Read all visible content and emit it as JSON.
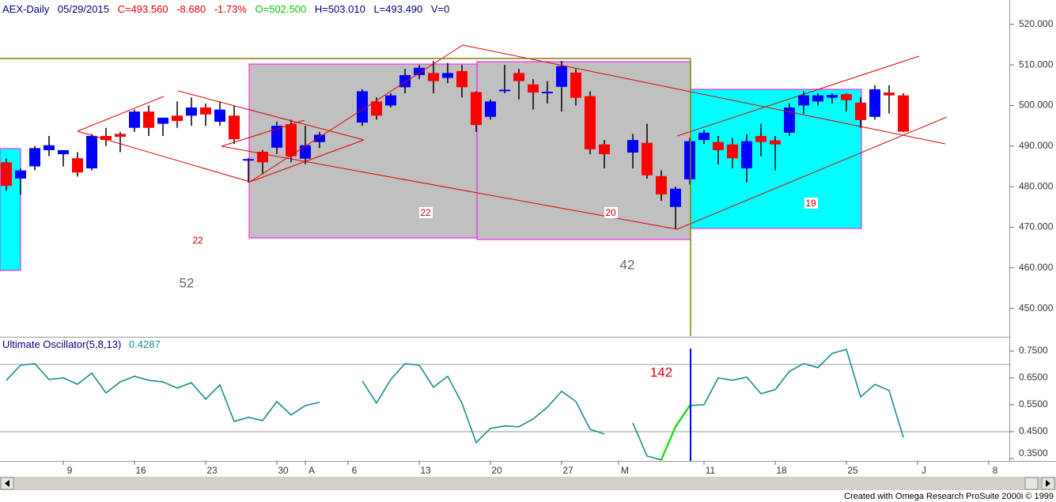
{
  "header": {
    "symbol": "AEX-Daily",
    "date": "05/29/2015",
    "close": "C=493.560",
    "change": "-8.680",
    "change_pct": "-1.73%",
    "open": "O=502.500",
    "high": "H=503.010",
    "low": "L=493.490",
    "volume": "V=0"
  },
  "credit": "Created with Omega Research ProSuite 2000i © 1999",
  "chart_data": [
    {
      "type": "candlestick",
      "categories": [
        null,
        null,
        null,
        null,
        "9",
        null,
        null,
        null,
        null,
        "16",
        null,
        null,
        null,
        null,
        "23",
        null,
        null,
        null,
        null,
        "30",
        null,
        "A",
        null,
        null,
        "6",
        null,
        null,
        null,
        null,
        "13",
        null,
        null,
        null,
        null,
        "20",
        null,
        null,
        null,
        null,
        "27",
        null,
        null,
        null,
        "M",
        null,
        null,
        null,
        null,
        null,
        "11",
        null,
        null,
        null,
        null,
        "18",
        null,
        null,
        null,
        null,
        "25",
        null,
        null,
        null,
        null,
        "J",
        null,
        null,
        null,
        null,
        "8",
        null
      ],
      "open": [
        486,
        482,
        485,
        489,
        488,
        487,
        484.5,
        492.5,
        493,
        494.5,
        498.5,
        495.5,
        497.5,
        497.5,
        499.5,
        496,
        497.5,
        486.5,
        488.6,
        489.6,
        495.4,
        486.9,
        491,
        null,
        null,
        495.8,
        501,
        500,
        504.5,
        507.5,
        508,
        506.8,
        508.5,
        503.3,
        497.2,
        503.7,
        508,
        505.2,
        503.1,
        504.6,
        508.1,
        502.3,
        490.4,
        null,
        488.4,
        490.8,
        482.6,
        475,
        481.8,
        491.5,
        491,
        490.4,
        484.5,
        492.5,
        491.4,
        493.3,
        500,
        501,
        501.9,
        502.8,
        500.7,
        497.2,
        503.2,
        502.5,
        null,
        null,
        null,
        null,
        null,
        null,
        null
      ],
      "high": [
        487,
        484.5,
        490,
        492.5,
        489,
        488.5,
        493,
        494.5,
        493.5,
        499,
        500,
        497,
        501,
        502,
        500.5,
        501,
        500,
        487,
        489,
        496,
        496.5,
        495,
        493.5,
        null,
        null,
        504,
        502,
        503,
        509,
        510,
        511,
        510.5,
        510,
        503.5,
        501.5,
        510,
        509,
        506.5,
        506,
        511,
        509,
        503.5,
        491.5,
        null,
        493,
        495.5,
        484,
        480,
        492,
        494,
        492.5,
        492,
        493,
        495.5,
        492.5,
        500.5,
        503.5,
        503,
        503,
        503,
        502,
        505,
        505,
        503.01,
        null,
        null,
        null,
        null,
        null,
        null,
        null
      ],
      "low": [
        479,
        478,
        484,
        487.5,
        485,
        482.5,
        484,
        490,
        488.5,
        493.5,
        492.5,
        492.5,
        494.5,
        495,
        495,
        495,
        490.5,
        481,
        483,
        488,
        486,
        485.5,
        489.5,
        null,
        null,
        495,
        496.5,
        499.5,
        503,
        506.5,
        503,
        505.5,
        502,
        493.5,
        496.5,
        503,
        501.5,
        499,
        500.5,
        498.5,
        500,
        488,
        484.5,
        null,
        484.5,
        482,
        476.5,
        469.5,
        480.5,
        490.5,
        485.5,
        484.5,
        481,
        487.5,
        484,
        492.5,
        498,
        500,
        500.5,
        498.5,
        494.5,
        496.5,
        498,
        493.49,
        null,
        null,
        null,
        null,
        null,
        null,
        null
      ],
      "close": [
        480.2,
        484,
        489.5,
        490.2,
        489,
        483.5,
        492.5,
        491.5,
        492.3,
        498.5,
        494.5,
        497,
        496.2,
        499.5,
        497.8,
        499,
        491.7,
        486.8,
        486,
        495,
        487.5,
        490.2,
        492.8,
        null,
        null,
        503.5,
        497.5,
        502.5,
        507.5,
        509.3,
        506,
        508,
        504.5,
        495.2,
        501,
        503.9,
        506,
        503.2,
        503.4,
        509.7,
        501.9,
        489.2,
        488,
        null,
        491.5,
        482.8,
        478.1,
        479.5,
        491.2,
        493.3,
        489,
        487,
        491.2,
        491,
        490.4,
        499.5,
        502.5,
        502.5,
        502.6,
        501.3,
        496.4,
        504,
        502.5,
        493.56,
        null,
        null,
        null,
        null,
        null,
        null,
        null
      ],
      "up_color": "#0000ff",
      "down_color": "#ff0000",
      "ylim": [
        443.2,
        526
      ],
      "yticks": [
        {
          "value": 520,
          "label": "520.000"
        },
        {
          "value": 510,
          "label": "510.000"
        },
        {
          "value": 500,
          "label": "500.000"
        },
        {
          "value": 490,
          "label": "490.000"
        },
        {
          "value": 480,
          "label": "480.000"
        },
        {
          "value": 470,
          "label": "470.000"
        },
        {
          "value": 460,
          "label": "460.000"
        },
        {
          "value": 450,
          "label": "450.000"
        }
      ],
      "annotations": [
        "22",
        "52",
        "22",
        "20",
        "42",
        "19"
      ]
    },
    {
      "type": "line",
      "title": "Ultimate Oscillator(5,8,13)",
      "last_value_label": "0.4287",
      "annotation": "142",
      "ylim": [
        0.341,
        0.797
      ],
      "yticks": [
        {
          "value": 0.75,
          "label": "0.7500"
        },
        {
          "value": 0.65,
          "label": "0.6500"
        },
        {
          "value": 0.55,
          "label": "0.5500"
        },
        {
          "value": 0.45,
          "label": "0.4500"
        },
        {
          "value": 0.35,
          "label": "0.3500"
        }
      ],
      "levels": [
        0.7,
        0.45
      ],
      "series": [
        {
          "color": "#1a8c8c",
          "values": [
            0.641,
            0.697,
            0.703,
            0.644,
            0.65,
            0.626,
            0.668,
            0.594,
            0.635,
            0.656,
            0.641,
            0.635,
            0.612,
            0.632,
            0.571,
            0.624,
            0.488,
            0.503,
            0.491,
            0.562,
            0.512,
            0.547,
            0.559,
            null,
            null,
            0.638,
            0.556,
            0.644,
            0.703,
            0.697,
            0.615,
            0.656,
            0.556,
            0.409,
            0.462,
            0.471,
            0.468,
            0.497,
            0.541,
            0.6,
            0.562,
            0.459,
            0.441,
            null,
            0.482,
            0.359,
            0.345,
            0.468,
            0.547,
            0.55,
            0.65,
            0.641,
            0.653,
            0.591,
            0.606,
            0.674,
            0.703,
            0.688,
            0.741,
            0.756,
            0.579,
            0.626,
            0.603,
            0.4287,
            null,
            null,
            null,
            null,
            null,
            null,
            null
          ]
        },
        {
          "color": "#22dd22",
          "values": [
            null,
            null,
            null,
            null,
            null,
            null,
            null,
            null,
            null,
            null,
            null,
            null,
            null,
            null,
            null,
            null,
            null,
            null,
            null,
            null,
            null,
            null,
            null,
            null,
            null,
            null,
            null,
            null,
            null,
            null,
            null,
            null,
            null,
            null,
            null,
            null,
            null,
            null,
            null,
            null,
            null,
            null,
            null,
            null,
            null,
            null,
            0.345,
            0.468,
            0.547,
            null,
            null,
            null,
            null,
            null,
            null,
            null,
            null,
            null,
            null,
            null,
            null,
            null,
            null,
            null,
            null,
            null,
            null,
            null,
            null,
            null,
            null
          ]
        }
      ]
    }
  ]
}
